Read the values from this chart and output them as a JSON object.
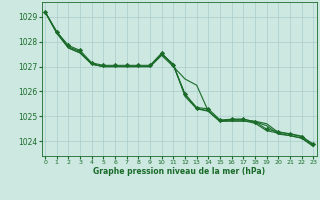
{
  "bg_color": "#cce8e0",
  "grid_color": "#aacccc",
  "line_color": "#1a6b2a",
  "marker_color": "#1a6b2a",
  "xlabel": "Graphe pression niveau de la mer (hPa)",
  "x_ticks": [
    0,
    1,
    2,
    3,
    4,
    5,
    6,
    7,
    8,
    9,
    10,
    11,
    12,
    13,
    14,
    15,
    16,
    17,
    18,
    19,
    20,
    21,
    22,
    23
  ],
  "y_ticks": [
    1024,
    1025,
    1026,
    1027,
    1028,
    1029
  ],
  "ylim": [
    1023.4,
    1029.6
  ],
  "xlim": [
    -0.3,
    23.3
  ],
  "series": [
    {
      "x": [
        0,
        1,
        2,
        3,
        4,
        5,
        6,
        7,
        8,
        9,
        10,
        11,
        12,
        13,
        14,
        15,
        16,
        17,
        18,
        19,
        20,
        21,
        22,
        23
      ],
      "y": [
        1029.2,
        1028.4,
        1027.8,
        1027.6,
        1027.1,
        1027.0,
        1027.0,
        1027.0,
        1027.0,
        1027.0,
        1027.5,
        1027.1,
        1025.8,
        1025.3,
        1025.2,
        1024.8,
        1024.8,
        1024.8,
        1024.8,
        1024.7,
        1024.35,
        1024.3,
        1024.2,
        1023.85
      ],
      "has_marker": false
    },
    {
      "x": [
        0,
        1,
        2,
        3,
        4,
        5,
        6,
        7,
        8,
        9,
        10,
        11,
        12,
        13,
        14,
        15,
        16,
        17,
        18,
        19,
        20,
        21,
        22,
        23
      ],
      "y": [
        1029.2,
        1028.35,
        1027.75,
        1027.55,
        1027.1,
        1027.0,
        1027.0,
        1027.0,
        1027.0,
        1027.0,
        1027.45,
        1027.0,
        1026.5,
        1026.25,
        1025.2,
        1024.78,
        1024.88,
        1024.88,
        1024.78,
        1024.62,
        1024.28,
        1024.22,
        1024.12,
        1023.78
      ],
      "has_marker": false
    },
    {
      "x": [
        0,
        1,
        2,
        3,
        4,
        5,
        6,
        7,
        8,
        9,
        10,
        11,
        12,
        13,
        14,
        15,
        16,
        17,
        18,
        19,
        20,
        21,
        22,
        23
      ],
      "y": [
        1029.2,
        1028.35,
        1027.75,
        1027.55,
        1027.1,
        1027.0,
        1027.0,
        1027.0,
        1027.0,
        1027.0,
        1027.5,
        1027.05,
        1025.85,
        1025.32,
        1025.22,
        1024.82,
        1024.82,
        1024.82,
        1024.72,
        1024.42,
        1024.32,
        1024.22,
        1024.12,
        1023.82
      ],
      "has_marker": false
    },
    {
      "x": [
        0,
        1,
        2,
        3,
        4,
        5,
        6,
        7,
        8,
        9,
        10,
        11,
        12,
        13,
        14,
        15,
        16,
        17,
        18,
        19,
        20,
        21,
        22,
        23
      ],
      "y": [
        1029.2,
        1028.4,
        1027.85,
        1027.65,
        1027.15,
        1027.05,
        1027.05,
        1027.05,
        1027.05,
        1027.05,
        1027.55,
        1027.05,
        1025.9,
        1025.35,
        1025.3,
        1024.85,
        1024.88,
        1024.88,
        1024.78,
        1024.48,
        1024.38,
        1024.28,
        1024.18,
        1023.88
      ],
      "has_marker": true
    }
  ]
}
